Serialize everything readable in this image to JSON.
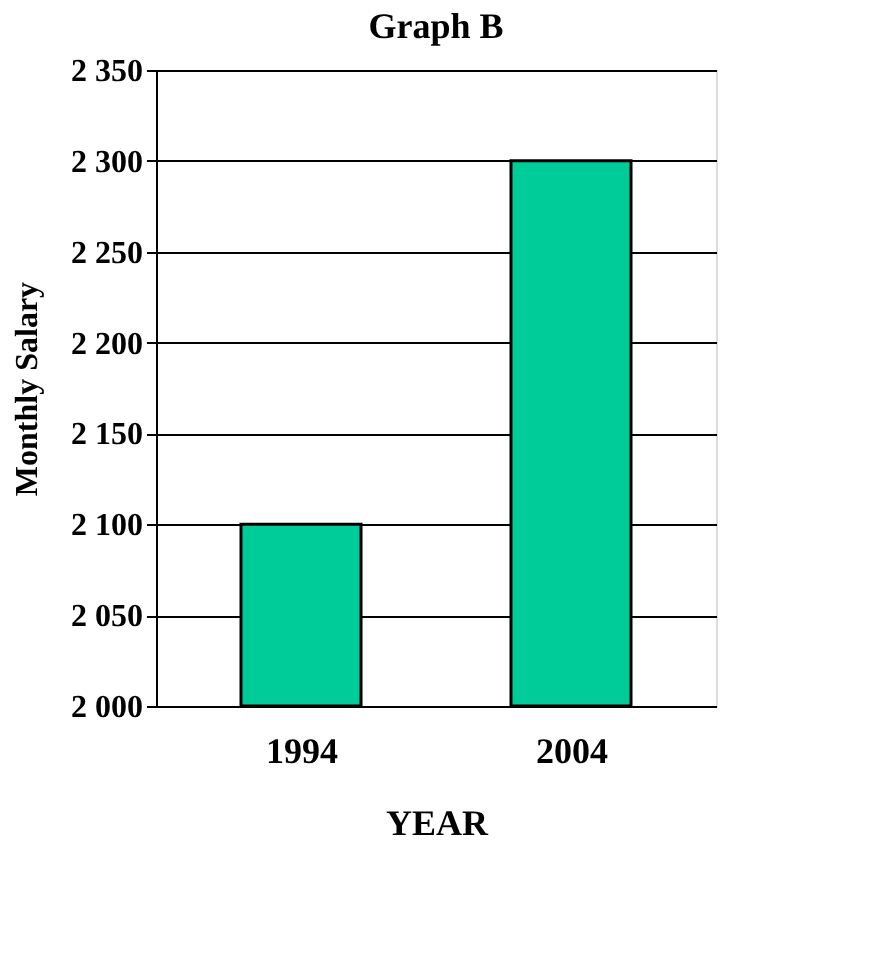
{
  "chart_data": {
    "type": "bar",
    "title": "Graph B",
    "xlabel": "YEAR",
    "ylabel": "Monthly Salary",
    "categories": [
      "1994",
      "2004"
    ],
    "values": [
      2100,
      2300
    ],
    "color": "#00cc99",
    "ylim": [
      2000,
      2350
    ],
    "yticks": [
      {
        "value": 2000,
        "label": "2 000"
      },
      {
        "value": 2050,
        "label": "2 050"
      },
      {
        "value": 2100,
        "label": "2 100"
      },
      {
        "value": 2150,
        "label": "2 150"
      },
      {
        "value": 2200,
        "label": "2 200"
      },
      {
        "value": 2250,
        "label": "2 250"
      },
      {
        "value": 2300,
        "label": "2 300"
      },
      {
        "value": 2350,
        "label": "2 350"
      }
    ],
    "grid": "y"
  }
}
